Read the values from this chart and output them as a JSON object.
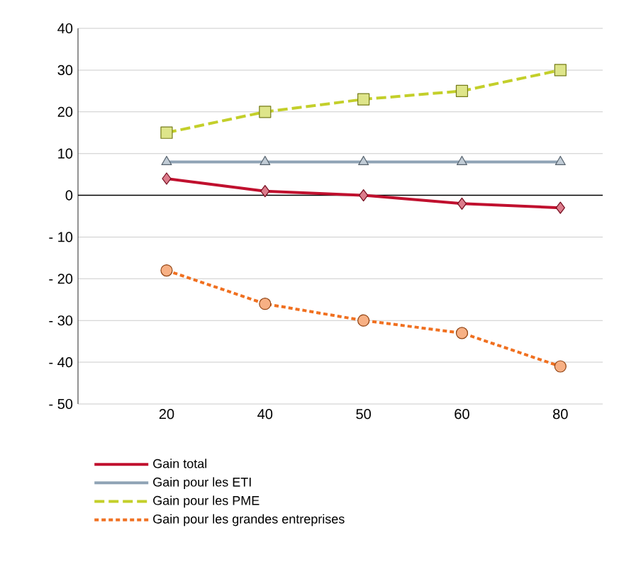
{
  "chart_data": {
    "type": "line",
    "categories": [
      "20",
      "40",
      "50",
      "60",
      "80"
    ],
    "series": [
      {
        "name": "Gain total",
        "color": "#c0102e",
        "marker": "diamond",
        "line_style": "solid",
        "values": [
          4,
          1,
          0,
          -2,
          -3
        ]
      },
      {
        "name": "Gain pour les ETI",
        "color": "#8fa3b5",
        "marker": "triangle",
        "line_style": "solid",
        "values": [
          8,
          8,
          8,
          8,
          8
        ]
      },
      {
        "name": "Gain pour les PME",
        "color": "#c3cf2a",
        "marker": "square",
        "line_style": "dashed",
        "values": [
          15,
          20,
          23,
          25,
          30
        ]
      },
      {
        "name": "Gain pour les grandes entreprises",
        "color": "#f07020",
        "marker": "circle",
        "line_style": "dotted",
        "values": [
          -18,
          -26,
          -30,
          -33,
          -41
        ]
      }
    ],
    "ylim": [
      -50,
      40
    ],
    "yticks": [
      40,
      30,
      20,
      10,
      0,
      {
        "value": -10,
        "label": "- 10"
      },
      {
        "value": -20,
        "label": "- 20"
      },
      {
        "value": -30,
        "label": "- 30"
      },
      {
        "value": -40,
        "label": "- 40"
      },
      {
        "value": -50,
        "label": "- 50"
      }
    ],
    "grid": "y",
    "legend": "bottom",
    "ref_lines": [
      {
        "axis": "y",
        "value": 0,
        "color": "#000000"
      }
    ]
  }
}
